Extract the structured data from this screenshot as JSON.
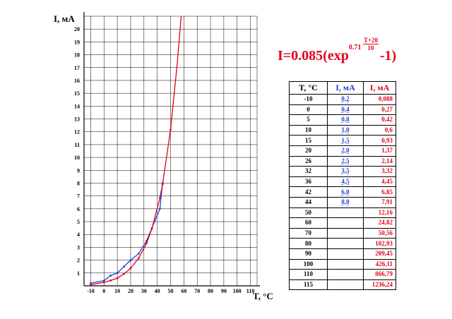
{
  "chart_data": {
    "type": "line",
    "xlabel": "T, °C",
    "ylabel": "I, мА",
    "xlim": [
      -15,
      115
    ],
    "ylim": [
      0,
      21
    ],
    "x_ticks": [
      "-10",
      "0",
      "10",
      "20",
      "30",
      "40",
      "50",
      "60",
      "70",
      "80",
      "90",
      "100",
      "110"
    ],
    "y_ticks": [
      "1",
      "2",
      "3",
      "4",
      "5",
      "6",
      "7",
      "8",
      "9",
      "10",
      "11",
      "12",
      "13",
      "14",
      "15",
      "16",
      "17",
      "18",
      "19",
      "20"
    ],
    "grid": true,
    "series": [
      {
        "color": "#1a3fd1",
        "x": [
          -10,
          0,
          5,
          10,
          15,
          20,
          26,
          32,
          36,
          42,
          44
        ],
        "values": [
          0.2,
          0.4,
          0.8,
          1.0,
          1.5,
          2.0,
          2.5,
          3.5,
          4.5,
          6.0,
          8.0
        ]
      },
      {
        "color": "#e3001b",
        "x": [
          -10,
          0,
          5,
          10,
          15,
          20,
          26,
          32,
          36,
          42,
          44,
          50,
          55,
          58
        ],
        "values": [
          0.088,
          0.27,
          0.42,
          0.6,
          0.93,
          1.37,
          2.14,
          3.32,
          4.45,
          6.85,
          7.91,
          12.16,
          17.3,
          21.0
        ]
      }
    ]
  },
  "formula": {
    "main": "I=0.085(exp",
    "base": "0.71",
    "numerator": "T+20",
    "denominator": "10",
    "tail": "-1)"
  },
  "table": {
    "headers": [
      "T, °C",
      "I, мА",
      "I, мА"
    ],
    "rows": [
      [
        "-10",
        "0,2",
        "0,088"
      ],
      [
        "0",
        "0,4",
        "0,27"
      ],
      [
        "5",
        "0,8",
        "0,42"
      ],
      [
        "10",
        "1,0",
        "0,6"
      ],
      [
        "15",
        "1,5",
        "0,93"
      ],
      [
        "20",
        "2,0",
        "1,37"
      ],
      [
        "26",
        "2,5",
        "2,14"
      ],
      [
        "32",
        "3,5",
        "3,32"
      ],
      [
        "36",
        "4,5",
        "4,45"
      ],
      [
        "42",
        "6,0",
        "6,85"
      ],
      [
        "44",
        "8,0",
        "7,91"
      ],
      [
        "50",
        "",
        "12,16"
      ],
      [
        "60",
        "",
        "24,82"
      ],
      [
        "70",
        "",
        "50,56"
      ],
      [
        "80",
        "",
        "102,93"
      ],
      [
        "90",
        "",
        "209,45"
      ],
      [
        "100",
        "",
        "426,11"
      ],
      [
        "110",
        "",
        "866,79"
      ],
      [
        "115",
        "",
        "1236,24"
      ]
    ]
  }
}
